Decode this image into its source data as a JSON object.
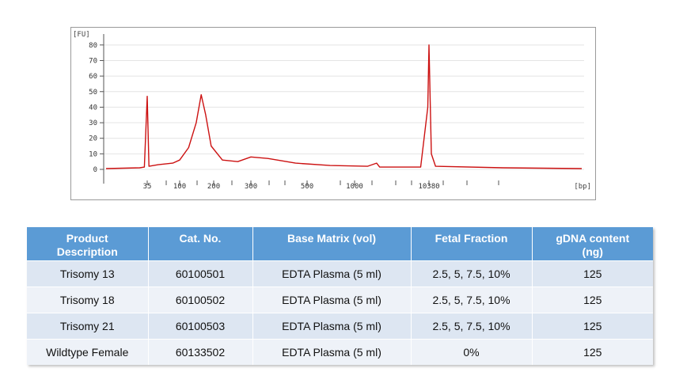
{
  "chart_data": {
    "type": "line",
    "title": "",
    "ylabel": "[FU]",
    "xlabel": "[bp]",
    "ylim": [
      0,
      85
    ],
    "yticks": [
      0,
      10,
      20,
      30,
      40,
      50,
      60,
      70,
      80
    ],
    "xtick_labels": [
      "35",
      "100",
      "200",
      "300",
      "500",
      "1000",
      "10380"
    ],
    "grid": true,
    "line_color": "#cc1111",
    "series": [
      {
        "values": [
          {
            "bp": "15",
            "fu": 0.5
          },
          {
            "bp": "30",
            "fu": 1.0
          },
          {
            "bp": "33",
            "fu": 1.5
          },
          {
            "bp": "35",
            "fu": 47
          },
          {
            "bp": "37",
            "fu": 2
          },
          {
            "bp": "50",
            "fu": 3
          },
          {
            "bp": "80",
            "fu": 4
          },
          {
            "bp": "100",
            "fu": 6
          },
          {
            "bp": "120",
            "fu": 14
          },
          {
            "bp": "140",
            "fu": 30
          },
          {
            "bp": "155",
            "fu": 48
          },
          {
            "bp": "170",
            "fu": 35
          },
          {
            "bp": "190",
            "fu": 15
          },
          {
            "bp": "220",
            "fu": 6
          },
          {
            "bp": "260",
            "fu": 5
          },
          {
            "bp": "300",
            "fu": 8
          },
          {
            "bp": "350",
            "fu": 7
          },
          {
            "bp": "450",
            "fu": 4
          },
          {
            "bp": "700",
            "fu": 2.5
          },
          {
            "bp": "1500",
            "fu": 2
          },
          {
            "bp": "2000",
            "fu": 4
          },
          {
            "bp": "2200",
            "fu": 1.5
          },
          {
            "bp": "8000",
            "fu": 1.5
          },
          {
            "bp": "10000",
            "fu": 40
          },
          {
            "bp": "10380",
            "fu": 80
          },
          {
            "bp": "10600",
            "fu": 10
          },
          {
            "bp": "11000",
            "fu": 2
          },
          {
            "bp": "20000",
            "fu": 1
          },
          {
            "bp": "40000",
            "fu": 0.5
          }
        ]
      }
    ]
  },
  "table": {
    "headers": [
      "Product\nDescription",
      "Cat. No.",
      "Base Matrix (vol)",
      "Fetal Fraction",
      "gDNA content\n(ng)"
    ],
    "rows": [
      [
        "Trisomy 13",
        "60100501",
        "EDTA Plasma (5 ml)",
        "2.5, 5, 7.5, 10%",
        "125"
      ],
      [
        "Trisomy 18",
        "60100502",
        "EDTA Plasma (5 ml)",
        "2.5, 5, 7.5, 10%",
        "125"
      ],
      [
        "Trisomy 21",
        "60100503",
        "EDTA Plasma (5 ml)",
        "2.5, 5, 7.5, 10%",
        "125"
      ],
      [
        "Wildtype Female",
        "60133502",
        "EDTA Plasma (5 ml)",
        "0%",
        "125"
      ]
    ],
    "header_color": "#5b9bd5"
  }
}
